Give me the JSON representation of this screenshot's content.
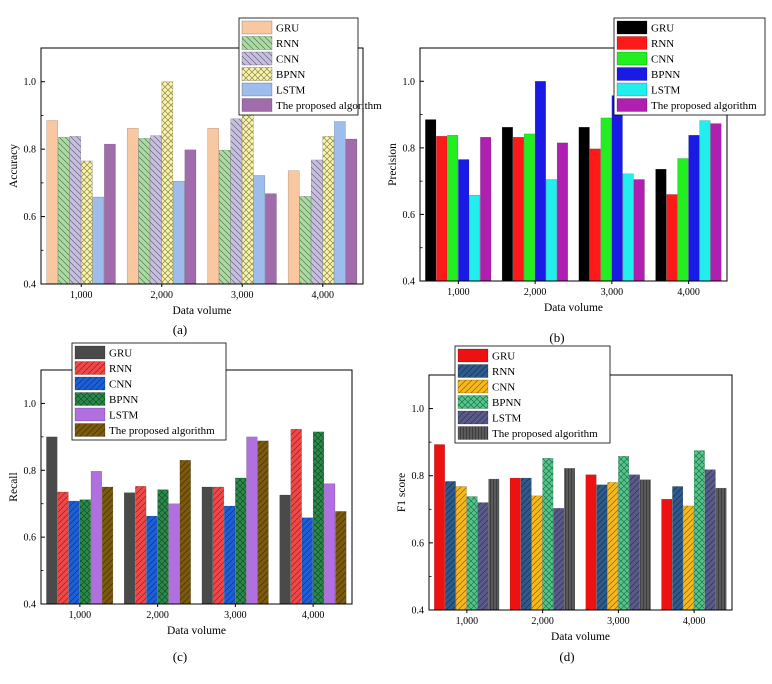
{
  "chart_data": [
    {
      "type": "bar",
      "panel_label": "(a)",
      "xlabel": "Data volume",
      "ylabel": "Accuracy",
      "categories": [
        "1,000",
        "2,000",
        "3,000",
        "4,000"
      ],
      "ylim": [
        0.4,
        1.1
      ],
      "yticks": [
        "0.4",
        "0.6",
        "0.8",
        "1.0"
      ],
      "legend_position": "top-right",
      "series": [
        {
          "name": "GRU",
          "color": "#f9c8a0",
          "pattern": "solid",
          "values": [
            0.885,
            0.862,
            0.862,
            0.736
          ]
        },
        {
          "name": "RNN",
          "color": "#a8dca0",
          "pattern": "hatch-back",
          "values": [
            0.835,
            0.832,
            0.797,
            0.66
          ]
        },
        {
          "name": "CNN",
          "color": "#c7bfe2",
          "pattern": "hatch-back",
          "values": [
            0.838,
            0.84,
            0.89,
            0.768
          ]
        },
        {
          "name": "BPNN",
          "color": "#f9f4a6",
          "pattern": "cross",
          "values": [
            0.765,
            1.0,
            0.957,
            0.838
          ]
        },
        {
          "name": "LSTM",
          "color": "#9ebcec",
          "pattern": "solid",
          "values": [
            0.658,
            0.705,
            0.722,
            0.882
          ]
        },
        {
          "name": "The proposed algorithm",
          "color": "#a16cab",
          "pattern": "solid",
          "values": [
            0.815,
            0.798,
            0.668,
            0.83
          ]
        }
      ]
    },
    {
      "type": "bar",
      "panel_label": "(b)",
      "xlabel": "Data volume",
      "ylabel": "Precision",
      "categories": [
        "1,000",
        "2,000",
        "3,000",
        "4,000"
      ],
      "ylim": [
        0.4,
        1.1
      ],
      "yticks": [
        "0.4",
        "0.6",
        "0.8",
        "1.0"
      ],
      "legend_position": "top-right",
      "series": [
        {
          "name": "GRU",
          "color": "#000000",
          "pattern": "solid",
          "values": [
            0.885,
            0.862,
            0.862,
            0.736
          ]
        },
        {
          "name": "RNN",
          "color": "#ff1a1a",
          "pattern": "solid",
          "values": [
            0.835,
            0.832,
            0.797,
            0.66
          ]
        },
        {
          "name": "CNN",
          "color": "#22ee22",
          "pattern": "solid",
          "values": [
            0.838,
            0.842,
            0.89,
            0.768
          ]
        },
        {
          "name": "BPNN",
          "color": "#1a1ae6",
          "pattern": "solid",
          "values": [
            0.765,
            1.0,
            0.957,
            0.838
          ]
        },
        {
          "name": "LSTM",
          "color": "#22eeee",
          "pattern": "solid",
          "values": [
            0.658,
            0.705,
            0.722,
            0.882
          ]
        },
        {
          "name": "The proposed algorithm",
          "color": "#b020b0",
          "pattern": "solid",
          "values": [
            0.832,
            0.815,
            0.705,
            0.873
          ]
        }
      ]
    },
    {
      "type": "bar",
      "panel_label": "(c)",
      "xlabel": "Data volume",
      "ylabel": "Recall",
      "categories": [
        "1,000",
        "2,000",
        "3,000",
        "4,000"
      ],
      "ylim": [
        0.4,
        1.1
      ],
      "yticks": [
        "0.4",
        "0.6",
        "0.8",
        "1.0"
      ],
      "legend_position": "top-right",
      "series": [
        {
          "name": "GRU",
          "color": "#4a4a4a",
          "pattern": "solid",
          "values": [
            0.9,
            0.733,
            0.75,
            0.726
          ]
        },
        {
          "name": "RNN",
          "color": "#f04848",
          "pattern": "hatch",
          "values": [
            0.735,
            0.752,
            0.75,
            0.923
          ]
        },
        {
          "name": "CNN",
          "color": "#1f5fd6",
          "pattern": "hatch",
          "values": [
            0.708,
            0.663,
            0.693,
            0.658
          ]
        },
        {
          "name": "BPNN",
          "color": "#2a8a4a",
          "pattern": "cross",
          "values": [
            0.712,
            0.742,
            0.777,
            0.915
          ]
        },
        {
          "name": "LSTM",
          "color": "#b070e0",
          "pattern": "solid",
          "values": [
            0.797,
            0.7,
            0.9,
            0.76
          ]
        },
        {
          "name": "The proposed algorithm",
          "color": "#7a5a10",
          "pattern": "hatch",
          "values": [
            0.75,
            0.83,
            0.888,
            0.677
          ]
        }
      ]
    },
    {
      "type": "bar",
      "panel_label": "(d)",
      "xlabel": "Data volume",
      "ylabel": "F1 score",
      "categories": [
        "1,000",
        "2,000",
        "3,000",
        "4,000"
      ],
      "ylim": [
        0.4,
        1.1
      ],
      "yticks": [
        "0.4",
        "0.6",
        "0.8",
        "1.0"
      ],
      "legend_position": "top-right",
      "series": [
        {
          "name": "GRU",
          "color": "#ee1111",
          "pattern": "solid",
          "values": [
            0.893,
            0.793,
            0.803,
            0.73
          ]
        },
        {
          "name": "RNN",
          "color": "#2f5a8a",
          "pattern": "hatch",
          "values": [
            0.783,
            0.793,
            0.773,
            0.768
          ]
        },
        {
          "name": "CNN",
          "color": "#f5b820",
          "pattern": "hatch",
          "values": [
            0.768,
            0.74,
            0.78,
            0.71
          ]
        },
        {
          "name": "BPNN",
          "color": "#4fc88a",
          "pattern": "cross",
          "values": [
            0.738,
            0.852,
            0.858,
            0.875
          ]
        },
        {
          "name": "LSTM",
          "color": "#5a5a8a",
          "pattern": "hatch",
          "values": [
            0.72,
            0.703,
            0.803,
            0.818
          ]
        },
        {
          "name": "The proposed algorithm",
          "color": "#5a5a5a",
          "pattern": "hatch-v",
          "values": [
            0.79,
            0.822,
            0.788,
            0.763
          ]
        }
      ]
    }
  ]
}
